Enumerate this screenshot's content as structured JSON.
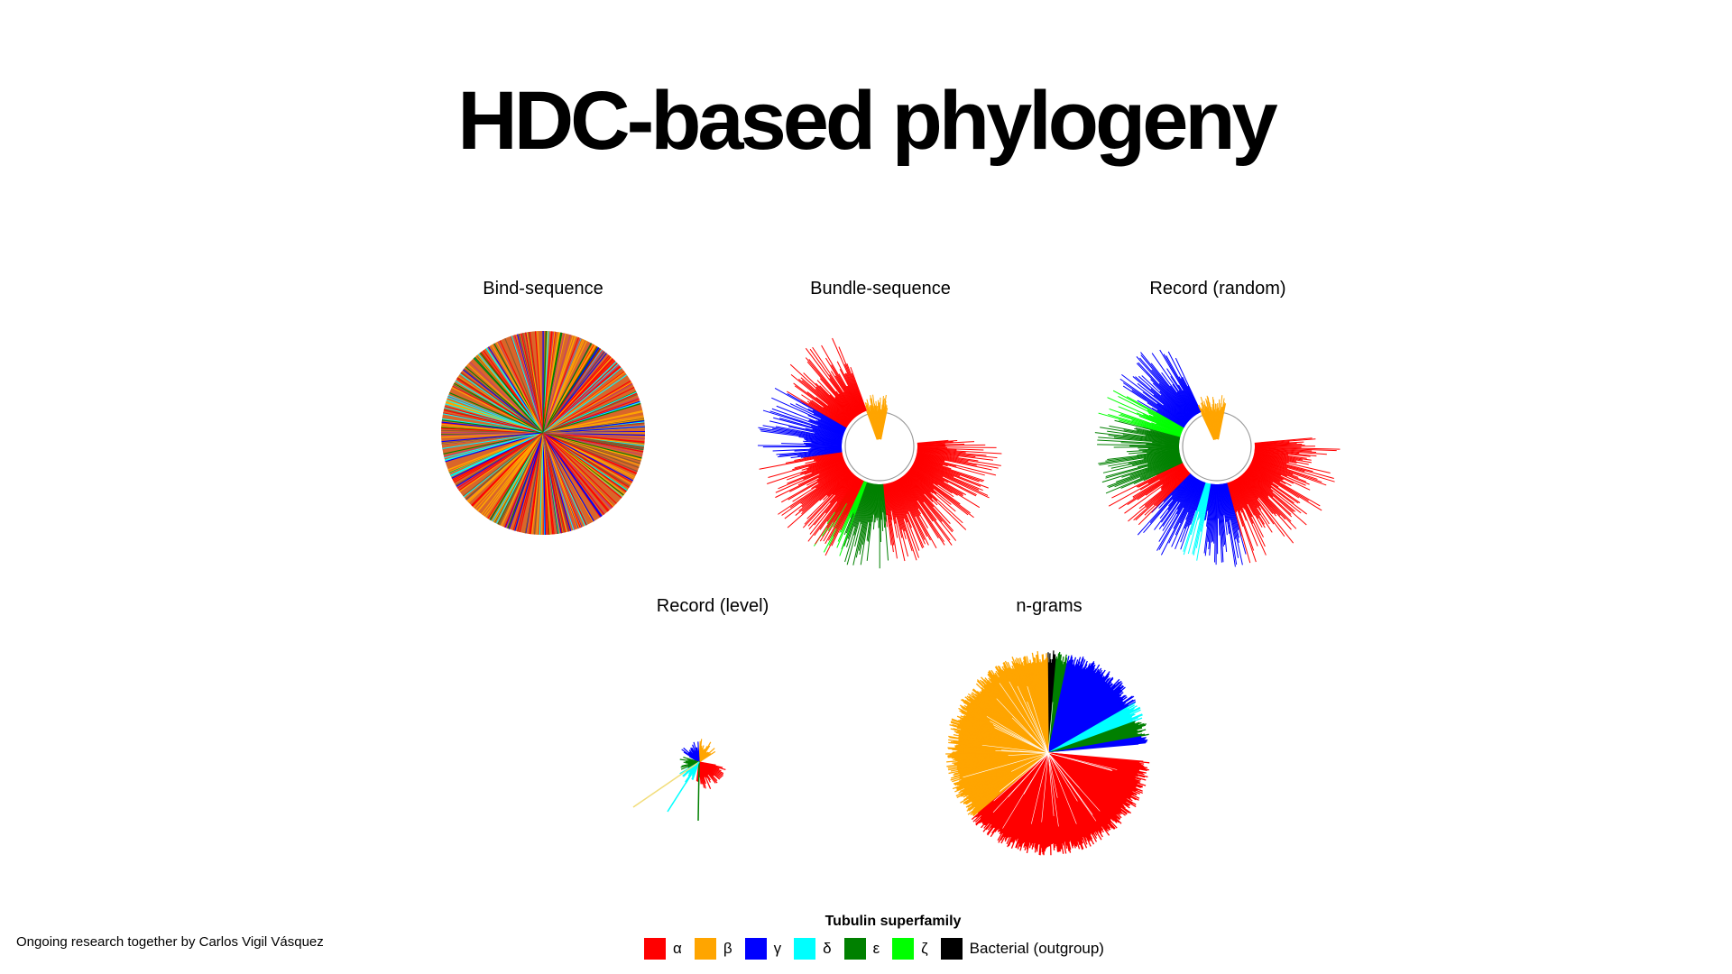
{
  "title": "HDC-based phylogeny",
  "panels": [
    {
      "label": "Bind-sequence",
      "style": "mixed"
    },
    {
      "label": "Bundle-sequence",
      "style": "arc"
    },
    {
      "label": "Record (random)",
      "style": "arc"
    },
    {
      "label": "Record (level)",
      "style": "small"
    },
    {
      "label": "n-grams",
      "style": "pie"
    }
  ],
  "footnote": "Ongoing research together by Carlos Vigil Vásquez",
  "legend": {
    "title": "Tubulin superfamily",
    "items": [
      {
        "label": "α",
        "color": "#ff0000"
      },
      {
        "label": "β",
        "color": "#ffa500"
      },
      {
        "label": "γ",
        "color": "#0000ff"
      },
      {
        "label": "δ",
        "color": "#00ffff"
      },
      {
        "label": "ε",
        "color": "#008000"
      },
      {
        "label": "ζ",
        "color": "#00ff00"
      },
      {
        "label": "Bacterial (outgroup)",
        "color": "#000000"
      }
    ]
  }
}
